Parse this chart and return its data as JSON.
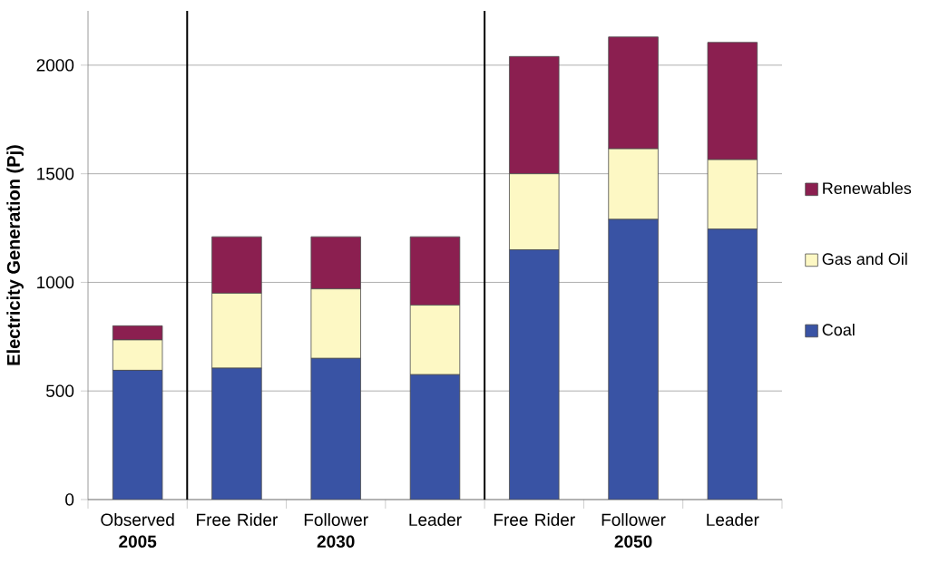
{
  "chart_data": {
    "type": "bar",
    "stacked": true,
    "ylabel": "Electricity Generation (Pj)",
    "categories": [
      "Observed **2005**",
      "Free Rider",
      "Follower **2030**",
      "Leader",
      "Free Rider",
      "Follower **2050**",
      "Leader"
    ],
    "series": [
      {
        "name": "Coal",
        "color": "#3953a4",
        "values": [
          595,
          605,
          650,
          575,
          1150,
          1290,
          1245
        ]
      },
      {
        "name": "Gas and Oil",
        "color": "#fdf8c4",
        "values": [
          140,
          345,
          320,
          320,
          350,
          325,
          320
        ]
      },
      {
        "name": "Renewables",
        "color": "#8b1f50",
        "values": [
          65,
          260,
          240,
          315,
          540,
          515,
          540
        ]
      }
    ],
    "ylim": [
      0,
      2250
    ],
    "yticks": [
      0,
      500,
      1000,
      1500,
      2000
    ],
    "grid": "y",
    "legend": "right"
  }
}
